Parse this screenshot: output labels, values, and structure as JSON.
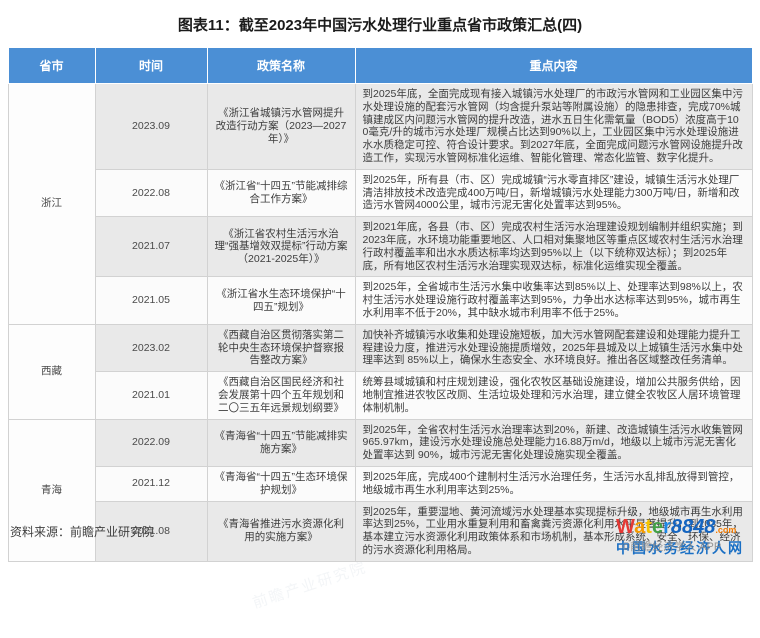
{
  "title": "图表11：截至2023年中国污水处理行业重点省市政策汇总(四)",
  "source_note": "资料来源：前瞻产业研究院",
  "watermark_text": "前瞻产业研究院",
  "colors": {
    "header_bg": "#4b8fd5",
    "header_text": "#ffffff",
    "row_shade": "#e9e9e9",
    "row_plain": "#fbfbfb",
    "border": "#d2d2d2",
    "title_text": "#1b1b1b"
  },
  "chart_data": {
    "type": "table",
    "title": "图表11：截至2023年中国污水处理行业重点省市政策汇总(四)",
    "columns": [
      "省市",
      "时间",
      "政策名称",
      "重点内容"
    ],
    "groups": [
      {
        "province": "浙江",
        "rows": [
          {
            "date": "2023.09",
            "policy": "《浙江省城镇污水管网提升改造行动方案（2023—2027年）》",
            "content": "到2025年底，全面完成现有接入城镇污水处理厂的市政污水管网和工业园区集中污水处理设施的配套污水管网（均含提升泵站等附属设施）的隐患排查，完成70%城镇建成区内问题污水管网的提升改造，进水五日生化需氧量（BOD5）浓度高于100毫克/升的城市污水处理厂规模占比达到90%以上，工业园区集中污水处理设施进水水质稳定可控、符合设计要求。到2027年底，全面完成问题污水管网设施提升改造工作，实现污水管网标准化运维、智能化管理、常态化监管、数字化提升。"
          },
          {
            "date": "2022.08",
            "policy": "《浙江省“十四五”节能减排综合工作方案》",
            "content": "到2025年，所有县（市、区）完成城镇“污水零直排区”建设，城镇生活污水处理厂清洁排放技术改造完成400万吨/日，新增城镇污水处理能力300万吨/日，新增和改造污水管网4000公里，城市污泥无害化处置率达到95%。"
          },
          {
            "date": "2021.07",
            "policy": "《浙江省农村生活污水治理“强基增效双提标”行动方案（2021-2025年）》",
            "content": "到2021年底，各县（市、区）完成农村生活污水治理建设规划编制并组织实施；到2023年底，水环境功能重要地区、人口相对集聚地区等重点区域农村生活污水治理行政村覆盖率和出水水质达标率均达到95%以上（以下统称双达标）；到2025年底，所有地区农村生活污水治理实现双达标，标准化运维实现全覆盖。"
          },
          {
            "date": "2021.05",
            "policy": "《浙江省水生态环境保护“十四五”规划》",
            "content": "到2025年，全省城市生活污水集中收集率达到85%以上、处理率达到98%以上，农村生活污水处理设施行政村覆盖率达到95%，力争出水达标率达到95%，城市再生水利用率不低于20%，其中缺水城市利用率不低于25%。"
          }
        ]
      },
      {
        "province": "西藏",
        "rows": [
          {
            "date": "2023.02",
            "policy": "《西藏自治区贯彻落实第二轮中央生态环境保护督察报告整改方案》",
            "content": "加快补齐城镇污水收集和处理设施短板，加大污水管网配套建设和处理能力提升工程建设力度，推进污水处理设施提质增效，2025年县城及以上城镇生活污水集中处理率达到 85%以上，确保水生态安全、水环境良好。推出各区域整改任务清单。"
          },
          {
            "date": "2021.01",
            "policy": "《西藏自治区国民经济和社会发展第十四个五年规划和二〇三五年远景规划纲要》",
            "content": "统筹县域城镇和村庄规划建设，强化农牧区基础设施建设，增加公共服务供给，因地制宜推进农牧区改厕、生活垃圾处理和污水治理，建立健全农牧区人居环境管理体制机制。"
          }
        ]
      },
      {
        "province": "青海",
        "rows": [
          {
            "date": "2022.09",
            "policy": "《青海省“十四五”节能减排实施方案》",
            "content": "到2025年，全省农村生活污水治理率达到20%，新建、改造城镇生活污水收集管网965.97km，建设污水处理设施总处理能力16.88万m/d，地级以上城市污泥无害化处置率达到 90%，城市污泥无害化处理设施实现全覆盖。"
          },
          {
            "date": "2021.12",
            "policy": "《青海省“十四五”生态环境保护规划》",
            "content": "到2025年底，完成400个建制村生活污水治理任务，生活污水乱排乱放得到管控，地级城市再生水利用率达到25%。"
          },
          {
            "date": "2021.08",
            "policy": "《青海省推进污水资源化利用的实施方案》",
            "content": "到2025年，重要湿地、黄河流域污水处理基本实现提标升级，地级城市再生水利用率达到25%，工业用水重复利用和畜禽粪污资源化利用水平显著提升；到2035年，基本建立污水资源化利用政策体系和市场机制，基本形成系统、安全、环保、经济的污水资源化利用格局。"
          }
        ]
      }
    ]
  },
  "logo": {
    "word": "Water8848",
    "letter_colors": [
      "#e53935",
      "#f59a00",
      "#f5c400",
      "#43a047",
      "#1e88e5",
      "#1565c0",
      "#1565c0",
      "#1565c0",
      "#1565c0"
    ],
    "suffix": ".com",
    "suffix_color": "#f57c00",
    "subtitle": "中国水务经济人网",
    "subtitle_color": "#1a6fc4",
    "copyright": "©前瞻经济学人 APP"
  }
}
